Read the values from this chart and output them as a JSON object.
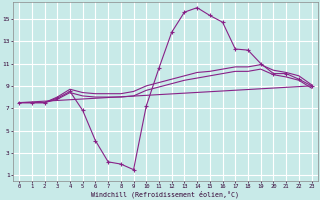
{
  "background_color": "#c8eae8",
  "grid_color": "#ffffff",
  "line_color": "#882288",
  "xlabel": "Windchill (Refroidissement éolien,°C)",
  "xlim": [
    -0.5,
    23.5
  ],
  "ylim": [
    0.5,
    16.5
  ],
  "x_ticks": [
    0,
    1,
    2,
    3,
    4,
    5,
    6,
    7,
    8,
    9,
    10,
    11,
    12,
    13,
    14,
    15,
    16,
    17,
    18,
    19,
    20,
    21,
    22,
    23
  ],
  "y_ticks": [
    1,
    3,
    5,
    7,
    9,
    11,
    13,
    15
  ],
  "line1_x": [
    0,
    1,
    2,
    3,
    4,
    5,
    6,
    7,
    8,
    9,
    10,
    11,
    12,
    13,
    14,
    15,
    16,
    17,
    18,
    19,
    20,
    21,
    22,
    23
  ],
  "line1_y": [
    7.5,
    7.5,
    7.5,
    7.9,
    8.5,
    6.8,
    4.1,
    2.2,
    2.0,
    1.5,
    7.2,
    10.6,
    13.8,
    15.6,
    16.0,
    15.3,
    14.7,
    12.3,
    12.2,
    11.0,
    10.1,
    10.1,
    9.6,
    9.0
  ],
  "line2_x": [
    0,
    1,
    2,
    3,
    4,
    5,
    6,
    7,
    8,
    9,
    10,
    11,
    12,
    13,
    14,
    15,
    16,
    17,
    18,
    19,
    20,
    21,
    22,
    23
  ],
  "line2_y": [
    7.5,
    7.5,
    7.5,
    8.0,
    8.7,
    8.4,
    8.3,
    8.3,
    8.3,
    8.5,
    9.0,
    9.3,
    9.6,
    9.9,
    10.2,
    10.3,
    10.5,
    10.7,
    10.7,
    10.9,
    10.4,
    10.2,
    9.9,
    9.1
  ],
  "line3_x": [
    0,
    1,
    2,
    3,
    4,
    5,
    6,
    7,
    8,
    9,
    10,
    11,
    12,
    13,
    14,
    15,
    16,
    17,
    18,
    19,
    20,
    21,
    22,
    23
  ],
  "line3_y": [
    7.5,
    7.5,
    7.5,
    7.8,
    8.4,
    8.1,
    8.0,
    8.0,
    8.0,
    8.1,
    8.6,
    8.9,
    9.2,
    9.5,
    9.7,
    9.9,
    10.1,
    10.3,
    10.3,
    10.5,
    10.0,
    9.8,
    9.5,
    8.8
  ],
  "line4_x": [
    0,
    23
  ],
  "line4_y": [
    7.5,
    9.0
  ]
}
